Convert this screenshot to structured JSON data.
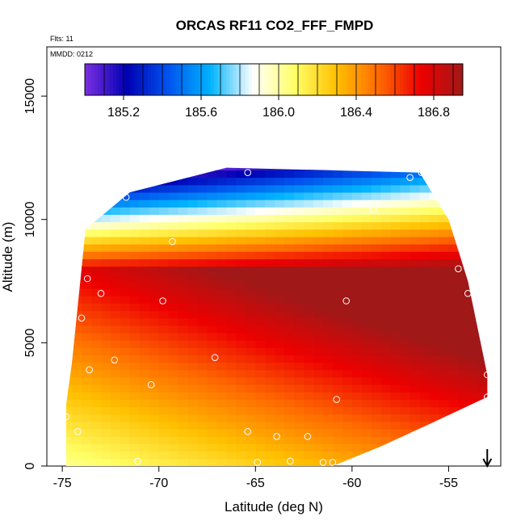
{
  "chart_data": {
    "type": "heatmap",
    "title": "ORCAS RF11 CO2_FFF_FMPD",
    "flights_label": "Flts: 11",
    "date_label": "MMDD: 0212",
    "xlabel": "Latitude (deg N)",
    "ylabel": "Altitude (m)",
    "xlim": [
      -75.8,
      -52.3
    ],
    "ylim": [
      0,
      17000
    ],
    "x_ticks": [
      -75,
      -70,
      -65,
      -60,
      -55
    ],
    "x_tick_labels": [
      "-75",
      "-70",
      "-65",
      "-60",
      "-55"
    ],
    "y_ticks": [
      0,
      5000,
      10000,
      15000
    ],
    "y_tick_labels": [
      "0",
      "5000",
      "10000",
      "15000"
    ],
    "colorbar": {
      "min": 185.0,
      "max": 186.95,
      "ticks": [
        185.2,
        185.6,
        186.0,
        186.4,
        186.8
      ],
      "tick_labels": [
        "185.2",
        "185.6",
        "186.0",
        "186.4",
        "186.8"
      ],
      "colors": [
        "#7b2fe0",
        "#0000b4",
        "#0055ee",
        "#00b4ff",
        "#ffffff",
        "#ffff66",
        "#ffc000",
        "#ff6a00",
        "#ee0000",
        "#a01818"
      ]
    },
    "field_boundary": {
      "bottom": [
        [
          -74.8,
          0
        ],
        [
          -61.0,
          0
        ],
        [
          -58.5,
          800
        ],
        [
          -56.0,
          1700
        ],
        [
          -53.0,
          2800
        ]
      ],
      "right": [
        [
          -53.0,
          2800
        ],
        [
          -53.0,
          3700
        ],
        [
          -54.0,
          7500
        ],
        [
          -55.0,
          10000
        ],
        [
          -56.5,
          11900
        ]
      ],
      "top": [
        [
          -56.5,
          11900
        ],
        [
          -66.5,
          12100
        ],
        [
          -71.5,
          11100
        ],
        [
          -73.8,
          9600
        ]
      ],
      "left": [
        [
          -73.8,
          9600
        ],
        [
          -74.0,
          8000
        ],
        [
          -74.5,
          4200
        ],
        [
          -74.8,
          2500
        ],
        [
          -74.8,
          0
        ]
      ]
    },
    "sample_points": [
      [
        -65.4,
        11900
      ],
      [
        -57.0,
        11700
      ],
      [
        -56.4,
        11900
      ],
      [
        -71.7,
        10900
      ],
      [
        -58.9,
        10400
      ],
      [
        -69.3,
        9100
      ],
      [
        -54.5,
        8000
      ],
      [
        -73.7,
        7600
      ],
      [
        -73.0,
        7000
      ],
      [
        -69.8,
        6700
      ],
      [
        -60.3,
        6700
      ],
      [
        -54.0,
        7000
      ],
      [
        -74.0,
        6000
      ],
      [
        -72.3,
        4300
      ],
      [
        -67.1,
        4400
      ],
      [
        -73.6,
        3900
      ],
      [
        -70.4,
        3300
      ],
      [
        -53.0,
        3700
      ],
      [
        -53.0,
        2800
      ],
      [
        -60.8,
        2700
      ],
      [
        -74.8,
        2000
      ],
      [
        -74.2,
        1400
      ],
      [
        -65.4,
        1400
      ],
      [
        -63.9,
        1200
      ],
      [
        -62.3,
        1200
      ],
      [
        -71.1,
        200
      ],
      [
        -64.9,
        150
      ],
      [
        -63.2,
        200
      ],
      [
        -61.5,
        150
      ],
      [
        -61.0,
        150
      ]
    ],
    "arrow": {
      "x": -53.0,
      "direction": "down"
    }
  }
}
